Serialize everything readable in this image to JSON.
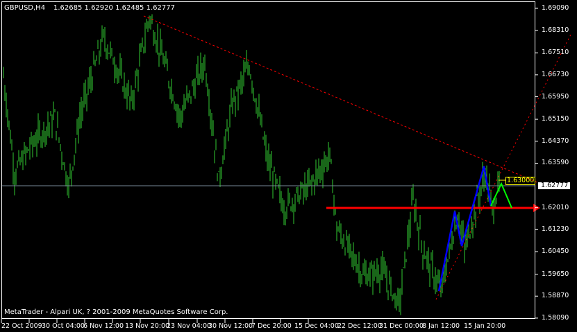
{
  "header": {
    "symbol": "GBPUSD,H4",
    "ohlc": "1.62685 1.62920 1.62485 1.62777"
  },
  "footer": {
    "copyright": "MetaTrader - Alpari UK, ? 2001-2009 MetaQuotes Software Corp."
  },
  "chart_data": {
    "type": "bar",
    "symbol": "GBPUSD",
    "timeframe": "H4",
    "ylim": [
      1.5809,
      1.6909
    ],
    "y_ticks": [
      "1.69090",
      "1.68310",
      "1.67510",
      "1.66730",
      "1.65950",
      "1.65150",
      "1.64370",
      "1.63590",
      "1.62010",
      "1.61230",
      "1.60450",
      "1.59650",
      "1.58870",
      "1.58090"
    ],
    "x_ticks": [
      "22 Oct 2009",
      "30 Oct 04:00",
      "6 Nov 12:00",
      "13 Nov 20:00",
      "23 Nov 04:00",
      "30 Nov 12:00",
      "7 Dec 20:00",
      "15 Dec 04:00",
      "22 Dec 12:00",
      "31 Dec 00:00",
      "8 Jan 12:00",
      "15 Jan 20:00"
    ],
    "current_price": "1.62777",
    "level_label": "1.63000",
    "horizontal_level": 1.6201,
    "price_path": [
      [
        0,
        1.6668
      ],
      [
        8,
        1.6325
      ],
      [
        20,
        1.6424
      ],
      [
        37,
        1.6522
      ],
      [
        47,
        1.6276
      ],
      [
        55,
        1.6522
      ],
      [
        72,
        1.6805
      ],
      [
        82,
        1.6694
      ],
      [
        92,
        1.6571
      ],
      [
        105,
        1.688
      ],
      [
        117,
        1.6694
      ],
      [
        127,
        1.6522
      ],
      [
        145,
        1.6719
      ],
      [
        155,
        1.63
      ],
      [
        165,
        1.6571
      ],
      [
        177,
        1.6707
      ],
      [
        190,
        1.6374
      ],
      [
        202,
        1.6201
      ],
      [
        220,
        1.6276
      ],
      [
        235,
        1.6387
      ],
      [
        240,
        1.6128
      ],
      [
        260,
        1.5955
      ],
      [
        272,
        1.598
      ],
      [
        285,
        1.5857
      ],
      [
        295,
        1.6226
      ],
      [
        302,
        1.6054
      ],
      [
        315,
        1.5906
      ],
      [
        327,
        1.6177
      ],
      [
        332,
        1.6054
      ],
      [
        347,
        1.6325
      ],
      [
        352,
        1.6201
      ],
      [
        357,
        1.6277
      ]
    ],
    "colors": {
      "bars": "#32cd32",
      "trendline": "#ff0000",
      "level": "#ff0000",
      "projection_up": "#0000ff",
      "projection_next": "#00ff00",
      "label": "#ffff00",
      "price_line": "#778899"
    }
  }
}
